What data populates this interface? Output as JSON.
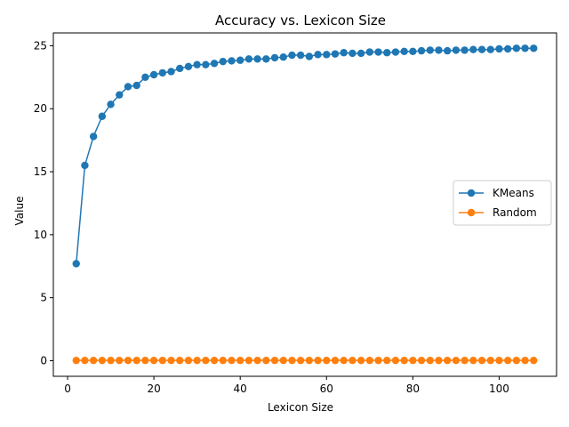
{
  "chart_data": {
    "type": "line",
    "title": "Accuracy vs. Lexicon Size",
    "xlabel": "Lexicon Size",
    "ylabel": "Value",
    "xlim": [
      -3.3,
      113.3
    ],
    "ylim": [
      -1.24,
      26.02
    ],
    "xticks": [
      0,
      20,
      40,
      60,
      80,
      100
    ],
    "yticks": [
      0,
      5,
      10,
      15,
      20,
      25
    ],
    "grid": false,
    "legend_position": "center-right",
    "x": [
      2,
      4,
      6,
      8,
      10,
      12,
      14,
      16,
      18,
      20,
      22,
      24,
      26,
      28,
      30,
      32,
      34,
      36,
      38,
      40,
      42,
      44,
      46,
      48,
      50,
      52,
      54,
      56,
      58,
      60,
      62,
      64,
      66,
      68,
      70,
      72,
      74,
      76,
      78,
      80,
      82,
      84,
      86,
      88,
      90,
      92,
      94,
      96,
      98,
      100,
      102,
      104,
      106,
      108
    ],
    "series": [
      {
        "name": "KMeans",
        "color": "#1f77b4",
        "values": [
          7.7,
          15.5,
          17.8,
          19.4,
          20.35,
          21.1,
          21.75,
          21.85,
          22.5,
          22.7,
          22.85,
          22.95,
          23.2,
          23.35,
          23.5,
          23.5,
          23.6,
          23.75,
          23.8,
          23.85,
          23.95,
          23.95,
          23.95,
          24.05,
          24.1,
          24.25,
          24.25,
          24.15,
          24.3,
          24.3,
          24.35,
          24.45,
          24.4,
          24.4,
          24.5,
          24.5,
          24.45,
          24.5,
          24.55,
          24.55,
          24.6,
          24.65,
          24.65,
          24.6,
          24.65,
          24.65,
          24.7,
          24.7,
          24.7,
          24.75,
          24.75,
          24.8,
          24.8,
          24.8
        ]
      },
      {
        "name": "Random",
        "color": "#ff7f0e",
        "values": [
          0.02,
          0.02,
          0.02,
          0.02,
          0.02,
          0.02,
          0.02,
          0.02,
          0.02,
          0.02,
          0.02,
          0.02,
          0.02,
          0.02,
          0.02,
          0.02,
          0.02,
          0.02,
          0.02,
          0.02,
          0.02,
          0.02,
          0.02,
          0.02,
          0.02,
          0.02,
          0.02,
          0.02,
          0.02,
          0.02,
          0.02,
          0.02,
          0.02,
          0.02,
          0.02,
          0.02,
          0.02,
          0.02,
          0.02,
          0.02,
          0.02,
          0.02,
          0.02,
          0.02,
          0.02,
          0.02,
          0.02,
          0.02,
          0.02,
          0.02,
          0.02,
          0.02,
          0.02,
          0.02
        ]
      }
    ]
  }
}
